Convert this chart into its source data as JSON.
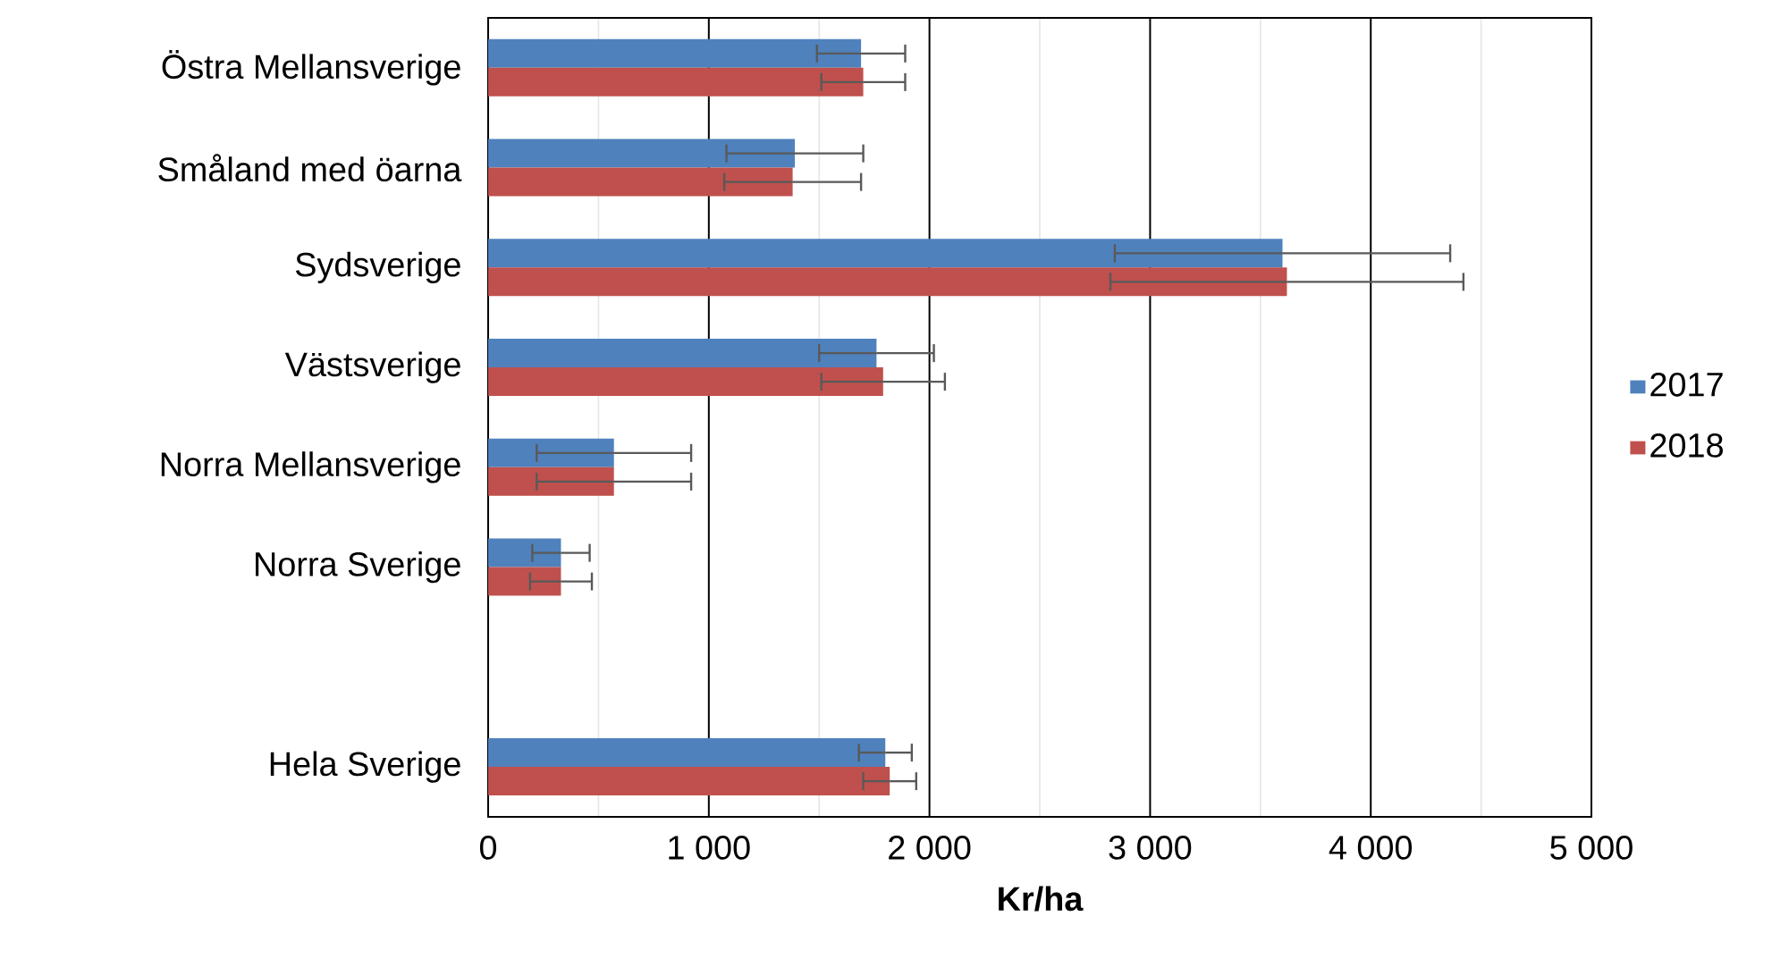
{
  "chart_data": {
    "type": "bar",
    "orientation": "horizontal",
    "xlabel": "Kr/ha",
    "categories": [
      "Östra Mellansverige",
      "Småland med öarna",
      "Sydsverige",
      "Västsverige",
      "Norra Mellansverige",
      "Norra Sverige",
      null,
      "Hela Sverige"
    ],
    "series": [
      {
        "name": "2017",
        "color": "#4f81bd",
        "values": [
          1690,
          1390,
          3600,
          1760,
          570,
          330,
          null,
          1800
        ],
        "errors": [
          200,
          310,
          760,
          260,
          350,
          130,
          null,
          120
        ]
      },
      {
        "name": "2018",
        "color": "#c0504d",
        "values": [
          1700,
          1380,
          3620,
          1790,
          570,
          330,
          null,
          1820
        ],
        "errors": [
          190,
          310,
          800,
          280,
          350,
          140,
          null,
          120
        ]
      }
    ],
    "xlim": [
      0,
      5000
    ],
    "xticks": [
      0,
      {
        "value": 1000,
        "label": "1 000"
      },
      {
        "value": 2000,
        "label": "2 000"
      },
      {
        "value": 3000,
        "label": "3 000"
      },
      {
        "value": 4000,
        "label": "4 000"
      },
      {
        "value": 5000,
        "label": "5 000"
      }
    ],
    "grid": "x",
    "legend": "right"
  }
}
